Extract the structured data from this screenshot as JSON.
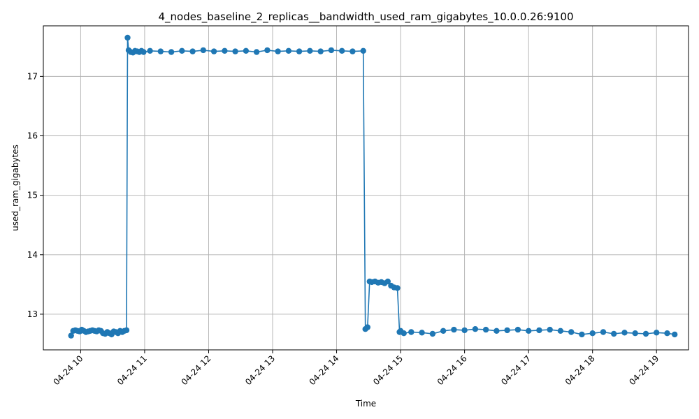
{
  "chart_data": {
    "type": "line",
    "title": "4_nodes_baseline_2_replicas__bandwidth_used_ram_gigabytes_10.0.0.26:9100",
    "xlabel": "Time",
    "ylabel": "used_ram_gigabytes",
    "x_ticks": [
      "04-24 10",
      "04-24 11",
      "04-24 12",
      "04-24 13",
      "04-24 14",
      "04-24 15",
      "04-24 16",
      "04-24 17",
      "04-24 18",
      "04-24 19"
    ],
    "y_ticks": [
      13,
      14,
      15,
      16,
      17
    ],
    "ylim": [
      12.4,
      17.85
    ],
    "xlim": [
      "04-24 09:25",
      "04-24 19:30"
    ],
    "grid": true,
    "series_color": "#1f77b4",
    "series": [
      {
        "x": [
          "09:51",
          "09:53",
          "09:55",
          "09:57",
          "09:59",
          "10:01",
          "10:03",
          "10:05",
          "10:07",
          "10:09",
          "10:11",
          "10:13",
          "10:15",
          "10:17",
          "10:19",
          "10:21",
          "10:23",
          "10:25",
          "10:27",
          "10:29",
          "10:31",
          "10:33",
          "10:35",
          "10:37",
          "10:39",
          "10:41",
          "10:43",
          "10:44",
          "10:45",
          "10:47",
          "10:49",
          "10:51",
          "10:53",
          "10:55",
          "10:57",
          "10:59",
          "11:05",
          "11:15",
          "11:25",
          "11:35",
          "11:45",
          "11:55",
          "12:05",
          "12:15",
          "12:25",
          "12:35",
          "12:45",
          "12:55",
          "13:05",
          "13:15",
          "13:25",
          "13:35",
          "13:45",
          "13:55",
          "14:05",
          "14:15",
          "14:25",
          "14:27",
          "14:29",
          "14:31",
          "14:33",
          "14:36",
          "14:39",
          "14:42",
          "14:45",
          "14:48",
          "14:51",
          "14:54",
          "14:57",
          "14:59",
          "15:00",
          "15:03",
          "15:10",
          "15:20",
          "15:30",
          "15:40",
          "15:50",
          "16:00",
          "16:10",
          "16:20",
          "16:30",
          "16:40",
          "16:50",
          "17:00",
          "17:10",
          "17:20",
          "17:30",
          "17:40",
          "17:50",
          "18:00",
          "18:10",
          "18:20",
          "18:30",
          "18:40",
          "18:50",
          "19:00",
          "19:10",
          "19:17"
        ],
        "y": [
          12.64,
          12.72,
          12.73,
          12.72,
          12.71,
          12.74,
          12.72,
          12.7,
          12.71,
          12.72,
          12.73,
          12.72,
          12.71,
          12.73,
          12.72,
          12.68,
          12.67,
          12.7,
          12.68,
          12.66,
          12.71,
          12.7,
          12.68,
          12.72,
          12.7,
          12.72,
          12.73,
          17.65,
          17.44,
          17.41,
          17.4,
          17.43,
          17.42,
          17.41,
          17.43,
          17.41,
          17.43,
          17.42,
          17.41,
          17.43,
          17.42,
          17.44,
          17.42,
          17.43,
          17.42,
          17.43,
          17.41,
          17.44,
          17.42,
          17.43,
          17.42,
          17.43,
          17.42,
          17.44,
          17.43,
          17.42,
          17.43,
          12.75,
          12.78,
          13.55,
          13.54,
          13.55,
          13.53,
          13.54,
          13.52,
          13.55,
          13.48,
          13.45,
          13.44,
          12.7,
          12.72,
          12.68,
          12.7,
          12.69,
          12.67,
          12.72,
          12.74,
          12.73,
          12.75,
          12.74,
          12.72,
          12.73,
          12.74,
          12.72,
          12.73,
          12.74,
          12.72,
          12.7,
          12.66,
          12.68,
          12.7,
          12.67,
          12.69,
          12.68,
          12.67,
          12.69,
          12.68,
          12.66
        ]
      }
    ]
  }
}
